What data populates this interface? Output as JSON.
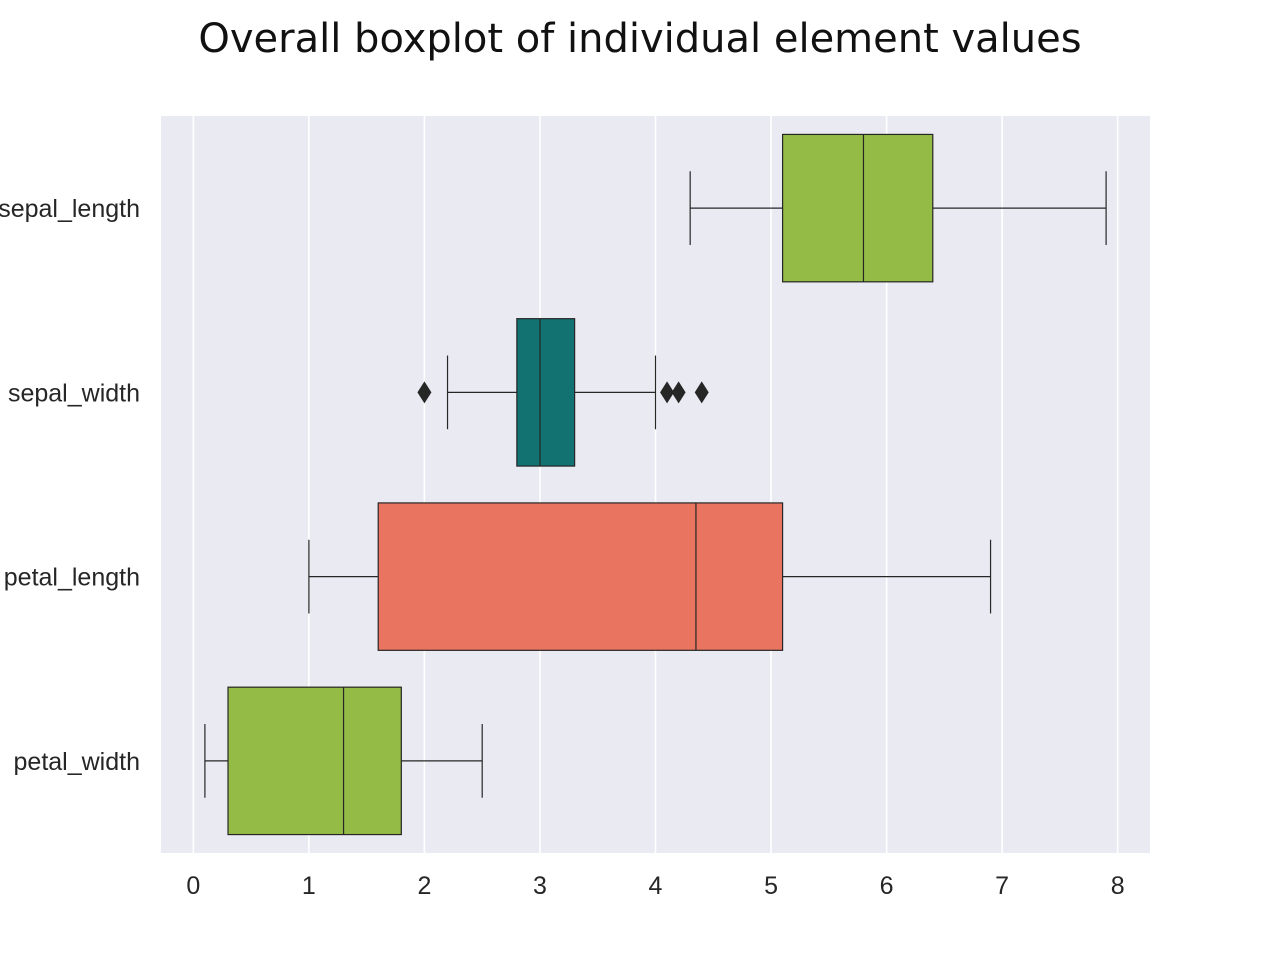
{
  "chart_data": {
    "type": "boxplot",
    "orientation": "horizontal",
    "title": "Overall boxplot of individual element values",
    "xlabel": "",
    "ylabel": "",
    "xlim": [
      -0.28,
      8.28
    ],
    "xticks": [
      0,
      1,
      2,
      3,
      4,
      5,
      6,
      7,
      8
    ],
    "grid": true,
    "categories": [
      "sepal_length",
      "sepal_width",
      "petal_length",
      "petal_width"
    ],
    "boxes": [
      {
        "category": "sepal_length",
        "whisker_low": 4.3,
        "q1": 5.1,
        "median": 5.8,
        "q3": 6.4,
        "whisker_high": 7.9,
        "outliers": [],
        "color": "#94BB46"
      },
      {
        "category": "sepal_width",
        "whisker_low": 2.2,
        "q1": 2.8,
        "median": 3.0,
        "q3": 3.3,
        "whisker_high": 4.0,
        "outliers": [
          2.0,
          4.1,
          4.2,
          4.4
        ],
        "color": "#127171"
      },
      {
        "category": "petal_length",
        "whisker_low": 1.0,
        "q1": 1.6,
        "median": 4.35,
        "q3": 5.1,
        "whisker_high": 6.9,
        "outliers": [],
        "color": "#E97561"
      },
      {
        "category": "petal_width",
        "whisker_low": 0.1,
        "q1": 0.3,
        "median": 1.3,
        "q3": 1.8,
        "whisker_high": 2.5,
        "outliers": [],
        "color": "#94BB46"
      }
    ],
    "colors": {
      "background": "#EAEAF2",
      "grid": "#FFFFFF",
      "line": "#262626"
    }
  }
}
